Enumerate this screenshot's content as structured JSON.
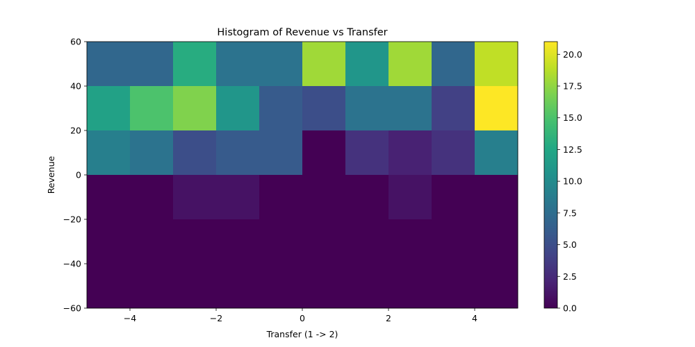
{
  "chart_data": {
    "type": "heatmap",
    "title": "Histogram of Revenue vs Transfer",
    "xlabel": "Transfer (1 -> 2)",
    "ylabel": "Revenue",
    "xlim": [
      -5,
      5
    ],
    "ylim": [
      -60,
      60
    ],
    "x_edges": [
      -5,
      -4,
      -3,
      -2,
      -1,
      0,
      1,
      2,
      3,
      4,
      5
    ],
    "y_edges": [
      -60,
      -40,
      -20,
      0,
      20,
      40,
      60
    ],
    "x_ticks": [
      -4,
      -2,
      0,
      2,
      4
    ],
    "x_tick_labels": [
      "−4",
      "−2",
      "0",
      "2",
      "4"
    ],
    "y_ticks": [
      -60,
      -40,
      -20,
      0,
      20,
      40,
      60
    ],
    "y_tick_labels": [
      "−60",
      "−40",
      "−20",
      "0",
      "20",
      "40",
      "60"
    ],
    "counts_rows_top_to_bottom": [
      [
        7,
        7,
        13,
        8,
        8,
        18,
        11,
        18,
        7,
        19
      ],
      [
        12,
        15,
        17,
        11,
        6,
        5,
        8,
        8,
        4,
        21
      ],
      [
        9,
        8,
        5,
        6,
        6,
        0,
        3,
        2,
        3,
        9
      ],
      [
        0,
        0,
        1,
        1,
        0,
        0,
        0,
        1,
        0,
        0
      ],
      [
        0,
        0,
        0,
        0,
        0,
        0,
        0,
        0,
        0,
        0
      ],
      [
        0,
        0,
        0,
        0,
        0,
        0,
        0,
        0,
        0,
        0
      ]
    ],
    "colorbar": {
      "colormap": "viridis",
      "vmin": 0,
      "vmax": 21,
      "ticks": [
        0,
        2.5,
        5,
        7.5,
        10,
        12.5,
        15,
        17.5,
        20
      ],
      "tick_labels": [
        "0.0",
        "2.5",
        "5.0",
        "7.5",
        "10.0",
        "12.5",
        "15.0",
        "17.5",
        "20.0"
      ]
    }
  }
}
